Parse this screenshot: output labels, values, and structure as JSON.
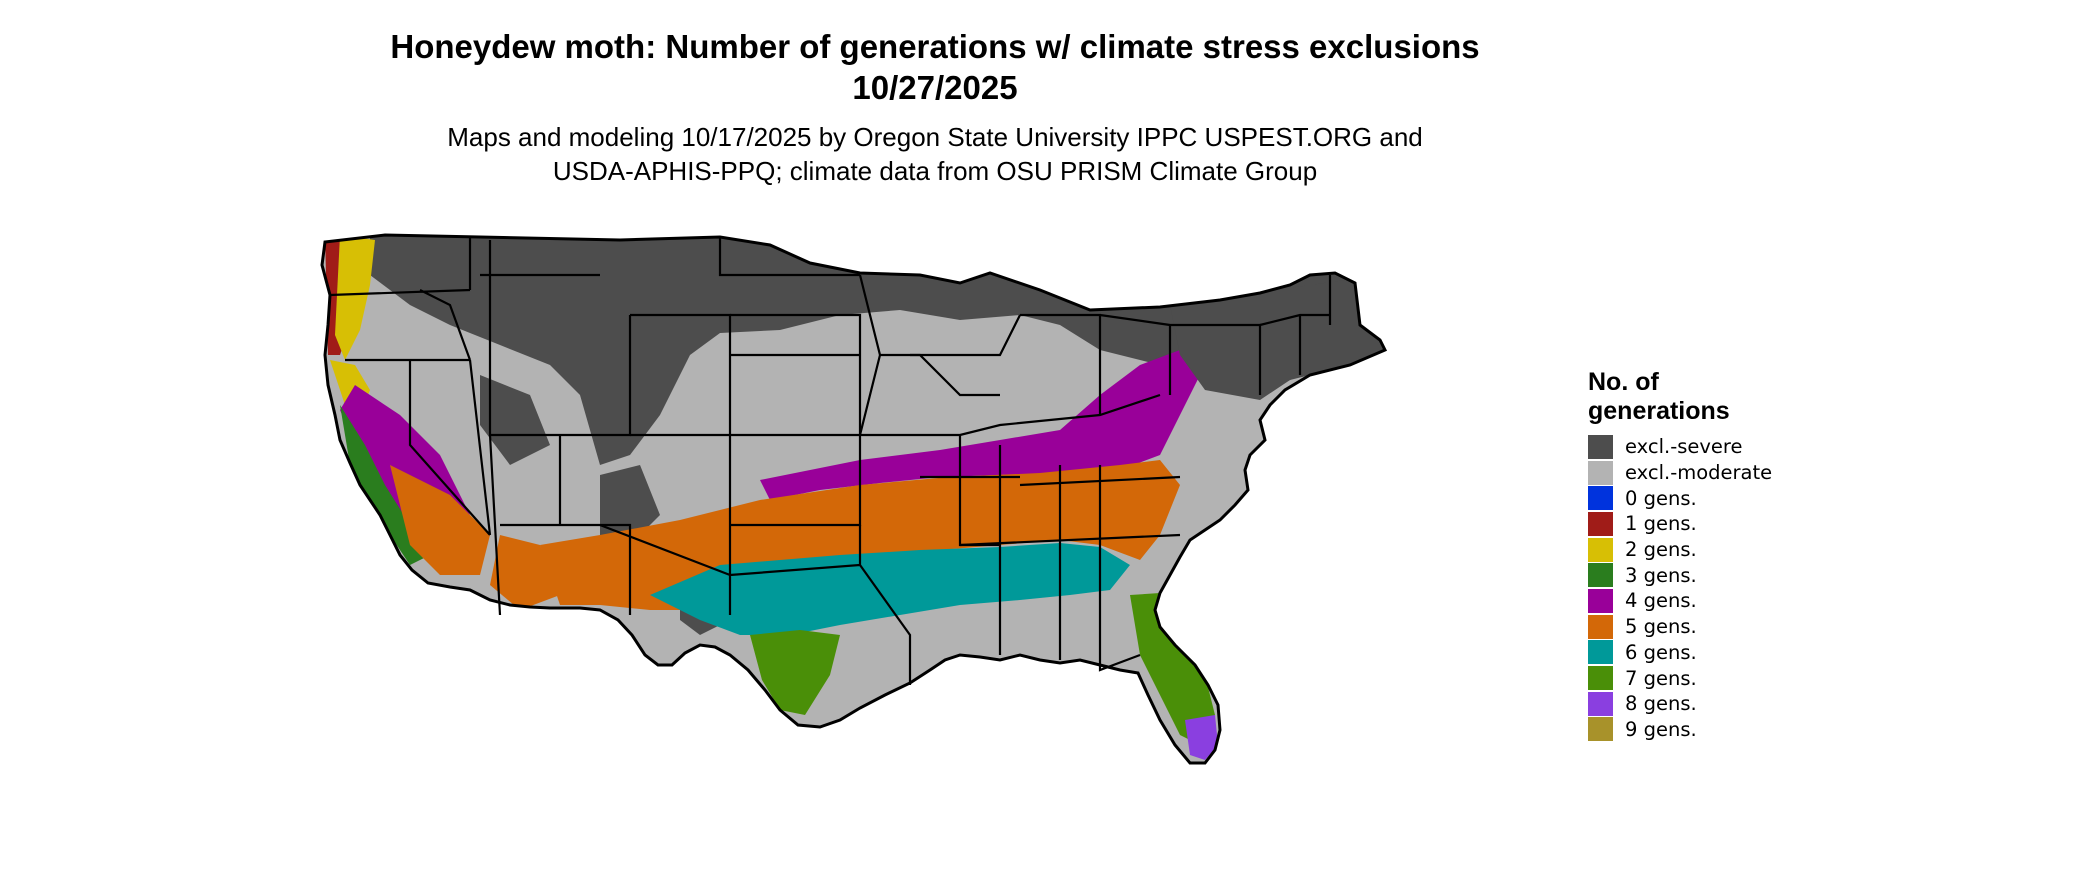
{
  "title_line1": "Honeydew moth: Number of generations w/ climate stress exclusions",
  "title_line2": "10/27/2025",
  "subtitle_line1": "Maps and modeling 10/17/2025 by Oregon State University IPPC USPEST.ORG and",
  "subtitle_line2": "USDA-APHIS-PPQ; climate data from OSU PRISM Climate Group",
  "legend": {
    "title_line1": "No. of",
    "title_line2": "generations",
    "items": [
      {
        "label": "excl.-severe",
        "color": "#4d4d4d"
      },
      {
        "label": "excl.-moderate",
        "color": "#b3b3b3"
      },
      {
        "label": "0 gens.",
        "color": "#0033dd"
      },
      {
        "label": "1 gens.",
        "color": "#a01c18"
      },
      {
        "label": "2 gens.",
        "color": "#d7bf05"
      },
      {
        "label": "3 gens.",
        "color": "#2a7d1e"
      },
      {
        "label": "4 gens.",
        "color": "#990099"
      },
      {
        "label": "5 gens.",
        "color": "#d36808"
      },
      {
        "label": "6 gens.",
        "color": "#009999"
      },
      {
        "label": "7 gens.",
        "color": "#4a8f08"
      },
      {
        "label": "8 gens.",
        "color": "#8a3fe0"
      },
      {
        "label": "9 gens.",
        "color": "#a8922a"
      }
    ]
  }
}
